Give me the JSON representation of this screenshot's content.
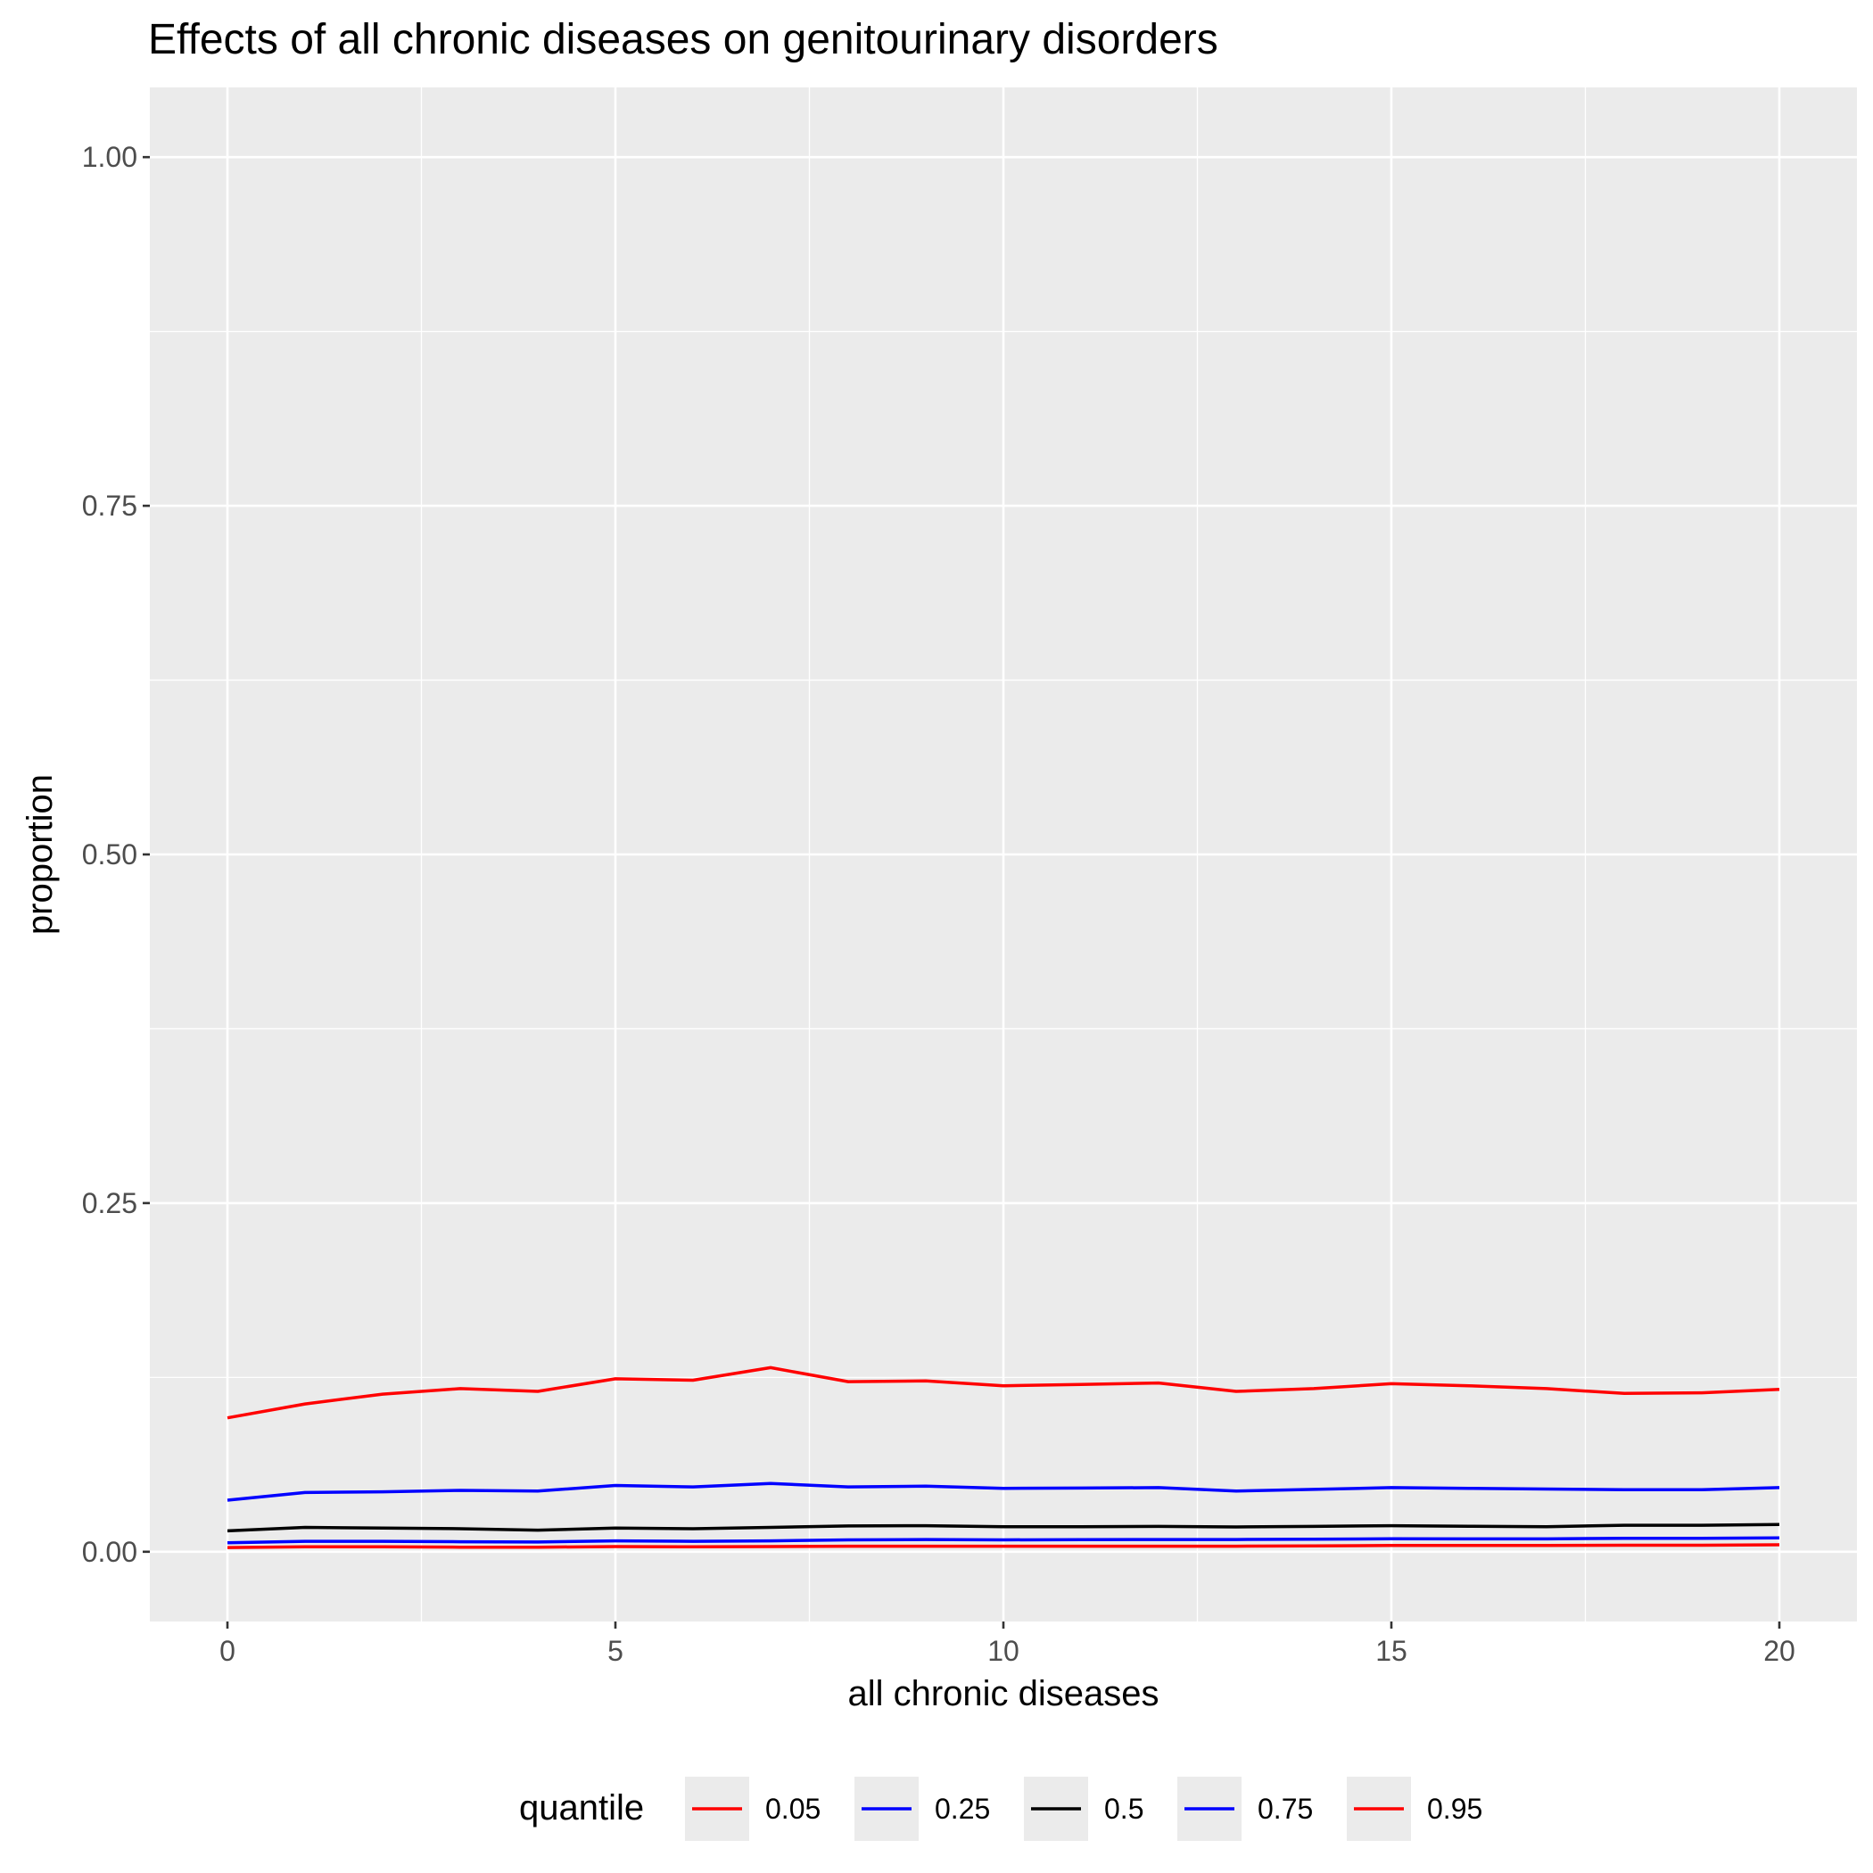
{
  "chart_data": {
    "type": "line",
    "title": "Effects of all chronic diseases on genitourinary disorders",
    "xlabel": "all chronic diseases",
    "ylabel": "proportion",
    "xlim": [
      -1,
      21
    ],
    "ylim": [
      -0.05,
      1.05
    ],
    "x_ticks": [
      0,
      5,
      10,
      15,
      20
    ],
    "x_tick_labels": [
      "0",
      "5",
      "10",
      "15",
      "20"
    ],
    "x_minor_ticks": [
      2.5,
      7.5,
      12.5,
      17.5
    ],
    "y_ticks": [
      0,
      0.25,
      0.5,
      0.75,
      1
    ],
    "y_tick_labels": [
      "0.00",
      "0.25",
      "0.50",
      "0.75",
      "1.00"
    ],
    "y_minor_ticks": [
      0.125,
      0.375,
      0.625,
      0.875
    ],
    "grid": true,
    "legend_title": "quantile",
    "legend_position": "bottom",
    "x": [
      0,
      1,
      2,
      3,
      4,
      5,
      6,
      7,
      8,
      9,
      10,
      11,
      12,
      13,
      14,
      15,
      16,
      17,
      18,
      19,
      20
    ],
    "series": [
      {
        "name": "0.05",
        "color": "#ff0000",
        "values": [
          0.003,
          0.0035,
          0.0035,
          0.0033,
          0.0033,
          0.0037,
          0.0035,
          0.0037,
          0.004,
          0.004,
          0.004,
          0.004,
          0.004,
          0.004,
          0.0042,
          0.0045,
          0.0045,
          0.0045,
          0.0047,
          0.0047,
          0.005
        ]
      },
      {
        "name": "0.25",
        "color": "#0000ff",
        "values": [
          0.0065,
          0.0075,
          0.0075,
          0.0072,
          0.007,
          0.0078,
          0.0075,
          0.0078,
          0.0085,
          0.0088,
          0.0085,
          0.0087,
          0.0088,
          0.0088,
          0.009,
          0.0093,
          0.0092,
          0.0092,
          0.0097,
          0.0097,
          0.01
        ]
      },
      {
        "name": "0.5",
        "color": "#000000",
        "values": [
          0.015,
          0.0175,
          0.017,
          0.0165,
          0.0155,
          0.017,
          0.0165,
          0.0175,
          0.0185,
          0.0187,
          0.018,
          0.018,
          0.0182,
          0.0178,
          0.0182,
          0.0187,
          0.0183,
          0.018,
          0.019,
          0.019,
          0.0195
        ]
      },
      {
        "name": "0.75",
        "color": "#0000ff",
        "values": [
          0.037,
          0.0425,
          0.043,
          0.044,
          0.0435,
          0.0475,
          0.0465,
          0.049,
          0.0465,
          0.047,
          0.0455,
          0.0457,
          0.046,
          0.0435,
          0.0447,
          0.046,
          0.0455,
          0.045,
          0.0445,
          0.0445,
          0.046
        ]
      },
      {
        "name": "0.95",
        "color": "#ff0000",
        "values": [
          0.096,
          0.106,
          0.113,
          0.117,
          0.115,
          0.124,
          0.123,
          0.132,
          0.122,
          0.1225,
          0.119,
          0.12,
          0.121,
          0.115,
          0.117,
          0.1205,
          0.119,
          0.117,
          0.1135,
          0.114,
          0.1165
        ]
      }
    ]
  }
}
